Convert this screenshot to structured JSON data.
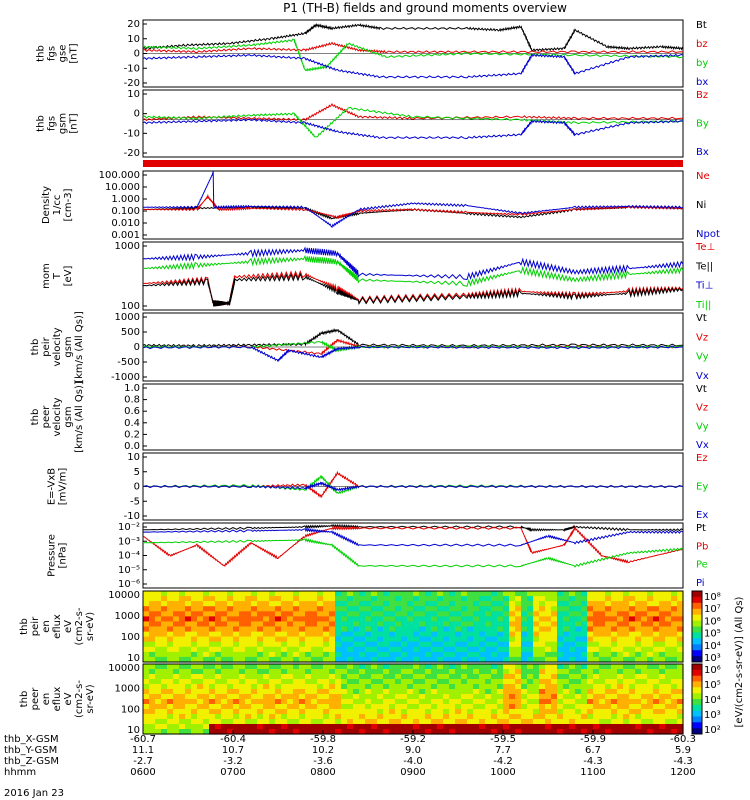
{
  "title": "P1 (TH-B) fields and ground moments overview",
  "date_label": "2016 Jan 23",
  "colors": {
    "black": "#000000",
    "red": "#e00000",
    "green": "#00d000",
    "blue": "#0000d0",
    "bar_red": "#e00000"
  },
  "chart_data": [
    {
      "type": "line",
      "panel": "fgs-gse",
      "ylabel": [
        "thb",
        "fgs",
        "gse",
        "[nT]"
      ],
      "ylim": [
        -20,
        20
      ],
      "yticks": [
        "20",
        "10",
        "0",
        "-10",
        "-20"
      ],
      "legend": [
        "Bt",
        "bz",
        "by",
        "bx"
      ],
      "series": [
        {
          "name": "Bt",
          "color": "#000000",
          "x": [
            0,
            0.08,
            0.16,
            0.24,
            0.3,
            0.32,
            0.35,
            0.4,
            0.44,
            0.6,
            0.66,
            0.7,
            0.72,
            0.78,
            0.8,
            0.86,
            0.9,
            0.96,
            1.0
          ],
          "y": [
            3,
            5,
            6,
            9,
            12,
            17,
            15,
            17,
            15,
            15,
            14,
            16,
            2,
            3,
            14,
            4,
            3,
            4,
            3
          ]
        },
        {
          "name": "bz",
          "color": "#e00000",
          "x": [
            0,
            0.1,
            0.2,
            0.3,
            0.35,
            0.4,
            0.45,
            0.6,
            0.8,
            1.0
          ],
          "y": [
            2,
            1,
            3,
            2,
            6,
            2,
            1,
            1,
            1,
            1
          ]
        },
        {
          "name": "by",
          "color": "#00d000",
          "x": [
            0,
            0.1,
            0.2,
            0.28,
            0.3,
            0.34,
            0.38,
            0.45,
            0.6,
            0.8,
            1.0
          ],
          "y": [
            4,
            3,
            5,
            8,
            -10,
            -8,
            6,
            -2,
            0,
            -1,
            -2
          ]
        },
        {
          "name": "bx",
          "color": "#0000d0",
          "x": [
            0,
            0.1,
            0.2,
            0.3,
            0.36,
            0.44,
            0.6,
            0.7,
            0.72,
            0.78,
            0.8,
            0.9,
            1.0
          ],
          "y": [
            -3,
            -2,
            -1,
            -3,
            -10,
            -14,
            -14,
            -12,
            -1,
            -2,
            -12,
            -2,
            -1
          ]
        }
      ]
    },
    {
      "type": "line",
      "panel": "fgs-gsm",
      "ylabel": [
        "thb",
        "fgs",
        "gsm",
        "[nT]"
      ],
      "ylim": [
        -25,
        20
      ],
      "yticks": [
        "10",
        "0",
        "-10",
        "-20"
      ],
      "legend": [
        "Bz",
        "By",
        "Bx"
      ],
      "series": [
        {
          "name": "Bz",
          "color": "#e00000",
          "x": [
            0,
            0.1,
            0.2,
            0.3,
            0.35,
            0.4,
            0.5,
            0.7,
            0.8,
            1.0
          ],
          "y": [
            0,
            2,
            1,
            0,
            10,
            2,
            1,
            2,
            1,
            1
          ]
        },
        {
          "name": "By",
          "color": "#00d000",
          "x": [
            0,
            0.1,
            0.2,
            0.28,
            0.32,
            0.38,
            0.5,
            0.7,
            0.8,
            1.0
          ],
          "y": [
            2,
            1,
            3,
            4,
            -12,
            8,
            2,
            0,
            -2,
            -1
          ]
        },
        {
          "name": "Bx",
          "color": "#0000d0",
          "x": [
            0,
            0.1,
            0.2,
            0.3,
            0.36,
            0.44,
            0.6,
            0.7,
            0.72,
            0.78,
            0.8,
            0.9,
            1.0
          ],
          "y": [
            -2,
            -1,
            0,
            -2,
            -8,
            -12,
            -12,
            -10,
            -1,
            -2,
            -10,
            -2,
            -1
          ]
        }
      ]
    },
    {
      "type": "line",
      "panel": "density",
      "ylabel": [
        "Density",
        "1/cc",
        "[cm-3]"
      ],
      "ylim": [
        0.001,
        200
      ],
      "yscale": "log",
      "yticks": [
        "100.000",
        "10.000",
        "1.000",
        "0.100",
        "0.010",
        "0.001"
      ],
      "legend": [
        "Ne",
        "Ni",
        "Npot"
      ],
      "series": [
        {
          "name": "Ni",
          "color": "#000000",
          "x": [
            0,
            0.1,
            0.2,
            0.3,
            0.35,
            0.4,
            0.5,
            0.6,
            0.7,
            0.8,
            0.9,
            1.0
          ],
          "y": [
            0.2,
            0.25,
            0.3,
            0.25,
            0.04,
            0.1,
            0.2,
            0.1,
            0.05,
            0.2,
            0.3,
            0.25
          ]
        },
        {
          "name": "Ne",
          "color": "#e00000",
          "x": [
            0,
            0.1,
            0.12,
            0.14,
            0.2,
            0.3,
            0.36,
            0.4,
            0.5,
            0.6,
            0.7,
            0.8,
            0.9,
            1.0
          ],
          "y": [
            0.2,
            0.2,
            2,
            0.2,
            0.25,
            0.2,
            0.05,
            0.15,
            0.2,
            0.12,
            0.08,
            0.2,
            0.3,
            0.25
          ]
        },
        {
          "name": "Npot",
          "color": "#0000d0",
          "x": [
            0,
            0.1,
            0.13,
            0.131,
            0.2,
            0.3,
            0.35,
            0.4,
            0.5,
            0.6,
            0.7,
            0.8,
            0.9,
            1.0
          ],
          "y": [
            0.3,
            0.3,
            150,
            0.3,
            0.35,
            0.3,
            0.01,
            0.2,
            0.6,
            0.4,
            0.1,
            0.3,
            0.35,
            0.3
          ]
        }
      ]
    },
    {
      "type": "line",
      "panel": "temperature",
      "ylabel": [
        "mom",
        "T",
        "[eV]"
      ],
      "ylim": [
        80,
        5000
      ],
      "yscale": "log",
      "yticks": [
        "1000",
        "100"
      ],
      "legend": [
        "Te⊥",
        "Te||",
        "Ti⊥",
        "Ti||"
      ],
      "series": [
        {
          "name": "Te⊥",
          "color": "#e00000",
          "x": [
            0,
            0.12,
            0.13,
            0.16,
            0.17,
            0.3,
            0.36,
            0.4,
            0.6,
            0.7,
            0.8,
            0.9,
            1.0
          ],
          "y": [
            400,
            500,
            120,
            120,
            600,
            700,
            300,
            150,
            200,
            250,
            200,
            250,
            300
          ]
        },
        {
          "name": "Te||",
          "color": "#000000",
          "x": [
            0,
            0.12,
            0.13,
            0.16,
            0.17,
            0.3,
            0.36,
            0.4,
            0.6,
            0.7,
            0.8,
            0.9,
            1.0
          ],
          "y": [
            350,
            450,
            120,
            120,
            500,
            600,
            250,
            140,
            180,
            220,
            180,
            220,
            280
          ]
        },
        {
          "name": "Ti⊥",
          "color": "#0000d0",
          "x": [
            0,
            0.1,
            0.2,
            0.3,
            0.36,
            0.4,
            0.6,
            0.7,
            0.8,
            0.9,
            1.0
          ],
          "y": [
            1800,
            2000,
            2500,
            3000,
            2500,
            700,
            600,
            1500,
            800,
            1000,
            1300
          ]
        },
        {
          "name": "Ti||",
          "color": "#00d000",
          "x": [
            0,
            0.1,
            0.2,
            0.3,
            0.36,
            0.4,
            0.6,
            0.7,
            0.8,
            0.9,
            1.0
          ],
          "y": [
            1000,
            1200,
            1500,
            1800,
            1500,
            500,
            400,
            900,
            500,
            700,
            900
          ]
        }
      ]
    },
    {
      "type": "line",
      "panel": "ion-velocity",
      "ylabel": [
        "thb",
        "peir",
        "velocity",
        "gsm",
        "[km/s (All Qs)]"
      ],
      "ylim": [
        -1000,
        1000
      ],
      "yticks": [
        "1000",
        "500",
        "0",
        "-500",
        "-1000"
      ],
      "legend": [
        "Vt",
        "Vz",
        "Vy",
        "Vx"
      ],
      "series": [
        {
          "name": "Vt",
          "color": "#000000",
          "x": [
            0,
            0.1,
            0.2,
            0.3,
            0.33,
            0.36,
            0.4,
            0.6,
            0.8,
            1.0
          ],
          "y": [
            50,
            40,
            60,
            80,
            400,
            500,
            60,
            40,
            60,
            50
          ]
        },
        {
          "name": "Vz",
          "color": "#e00000",
          "x": [
            0,
            0.2,
            0.33,
            0.36,
            0.4,
            0.6,
            0.8,
            1.0
          ],
          "y": [
            0,
            10,
            -200,
            200,
            10,
            0,
            20,
            0
          ]
        },
        {
          "name": "Vy",
          "color": "#00d000",
          "x": [
            0,
            0.2,
            0.33,
            0.36,
            0.4,
            0.6,
            0.8,
            1.0
          ],
          "y": [
            10,
            0,
            150,
            -100,
            0,
            10,
            0,
            10
          ]
        },
        {
          "name": "Vx",
          "color": "#0000d0",
          "x": [
            0,
            0.2,
            0.25,
            0.27,
            0.33,
            0.36,
            0.4,
            0.6,
            0.8,
            1.0
          ],
          "y": [
            -20,
            0,
            -400,
            -100,
            -300,
            -50,
            0,
            -10,
            -20,
            0
          ]
        }
      ]
    },
    {
      "type": "line",
      "panel": "electron-velocity",
      "ylabel": [
        "thb",
        "peer",
        "velocity",
        "gsm",
        "[km/s (All Qs)]"
      ],
      "ylim": [
        0,
        1
      ],
      "yticks": [
        "1.0",
        "0.8",
        "0.6",
        "0.4",
        "0.2",
        "0.0"
      ],
      "legend": [
        "Vt",
        "Vz",
        "Vy",
        "Vx"
      ],
      "series": []
    },
    {
      "type": "line",
      "panel": "efield",
      "ylabel": [
        "E=-VxB",
        "[mV/m]"
      ],
      "ylim": [
        -10,
        10
      ],
      "yticks": [
        "10",
        "5",
        "0",
        "-5",
        "-10"
      ],
      "legend": [
        "Ez",
        "Ey",
        "Ex"
      ],
      "series": [
        {
          "name": "Ez",
          "color": "#e00000",
          "x": [
            0,
            0.2,
            0.3,
            0.33,
            0.36,
            0.4,
            0.6,
            0.8,
            1.0
          ],
          "y": [
            0,
            0,
            0.5,
            -3,
            4,
            0,
            0,
            0,
            0
          ]
        },
        {
          "name": "Ey",
          "color": "#00d000",
          "x": [
            0,
            0.2,
            0.3,
            0.33,
            0.36,
            0.4,
            0.6,
            0.8,
            1.0
          ],
          "y": [
            0,
            0.3,
            -1,
            3,
            -2,
            0,
            0.2,
            0,
            0
          ]
        },
        {
          "name": "Ex",
          "color": "#0000d0",
          "x": [
            0,
            0.2,
            0.3,
            0.33,
            0.36,
            0.4,
            0.6,
            0.8,
            1.0
          ],
          "y": [
            0,
            0,
            -0.5,
            1,
            -1,
            0,
            0,
            0,
            0
          ]
        }
      ]
    },
    {
      "type": "line",
      "panel": "pressure",
      "ylabel": [
        "Pressure",
        "[nPa]"
      ],
      "ylim": [
        1e-06,
        0.1
      ],
      "yscale": "log",
      "yticks": [
        "10⁻²",
        "10⁻³",
        "10⁻⁴",
        "10⁻⁵",
        "10⁻⁶"
      ],
      "legend": [
        "Pt",
        "Pb",
        "Pe",
        "Pi"
      ],
      "series": [
        {
          "name": "Pt",
          "color": "#000000",
          "x": [
            0,
            0.2,
            0.3,
            0.35,
            0.4,
            0.7,
            0.72,
            0.78,
            0.8,
            0.9,
            1.0
          ],
          "y": [
            0.03,
            0.04,
            0.05,
            0.06,
            0.05,
            0.05,
            0.03,
            0.03,
            0.05,
            0.03,
            0.03
          ]
        },
        {
          "name": "Pb",
          "color": "#e00000",
          "x": [
            0,
            0.05,
            0.1,
            0.15,
            0.2,
            0.25,
            0.3,
            0.35,
            0.4,
            0.7,
            0.72,
            0.78,
            0.8,
            0.85,
            0.9,
            1.0
          ],
          "y": [
            0.01,
            0.0003,
            0.002,
            5e-05,
            0.003,
            0.0002,
            0.01,
            0.04,
            0.04,
            0.04,
            0.0005,
            0.002,
            0.04,
            0.0003,
            0.0001,
            0.001
          ]
        },
        {
          "name": "Pe",
          "color": "#00d000",
          "x": [
            0,
            0.2,
            0.3,
            0.35,
            0.4,
            0.7,
            0.75,
            0.8,
            0.9,
            1.0
          ],
          "y": [
            0.003,
            0.004,
            0.005,
            0.002,
            5e-05,
            5e-05,
            0.0002,
            5e-05,
            0.0005,
            0.001
          ]
        },
        {
          "name": "Pi",
          "color": "#0000d0",
          "x": [
            0,
            0.2,
            0.3,
            0.35,
            0.4,
            0.7,
            0.75,
            0.8,
            0.9,
            1.0
          ],
          "y": [
            0.02,
            0.025,
            0.03,
            0.02,
            0.002,
            0.002,
            0.01,
            0.003,
            0.02,
            0.02
          ]
        }
      ]
    },
    {
      "type": "heatmap",
      "panel": "ion-eflux",
      "ylabel": [
        "thb",
        "peir",
        "en",
        "eflux",
        "eV",
        "(cm2-s-",
        "sr-eV)"
      ],
      "yscale": "log",
      "yticks": [
        "10000",
        "1000",
        "100",
        "10"
      ]
    },
    {
      "type": "heatmap",
      "panel": "electron-eflux",
      "ylabel": [
        "thb",
        "peer",
        "en",
        "eflux",
        "eV",
        "(cm2-s-",
        "sr-eV)"
      ],
      "yscale": "log",
      "yticks": [
        "10000",
        "1000",
        "100",
        "10"
      ]
    }
  ],
  "colorbar": {
    "label": "[eV/(cm2-s-sr-eV)] (All Qs)",
    "ticks_top": [
      "10⁸",
      "10⁷",
      "10⁶",
      "10⁵",
      "10⁴",
      "10³"
    ],
    "ticks_bottom": [
      "10⁶",
      "10⁵",
      "10⁴",
      "10³",
      "10²"
    ]
  },
  "xaxis": {
    "row_labels": [
      "thb_X-GSM",
      "thb_Y-GSM",
      "thb_Z-GSM",
      "hhmm"
    ],
    "x_gsm": [
      "-60.7",
      "-60.4",
      "-59.8",
      "-59.2",
      "-59.5",
      "-59.9",
      "-60.3"
    ],
    "y_gsm": [
      "11.1",
      "10.7",
      "10.2",
      "9.0",
      "7.7",
      "6.7",
      "5.9"
    ],
    "z_gsm": [
      "-2.7",
      "-3.2",
      "-3.6",
      "-4.0",
      "-4.2",
      "-4.3",
      "-4.3"
    ],
    "hhmm": [
      "0600",
      "0700",
      "0800",
      "0900",
      "1000",
      "1100",
      "1200"
    ]
  }
}
